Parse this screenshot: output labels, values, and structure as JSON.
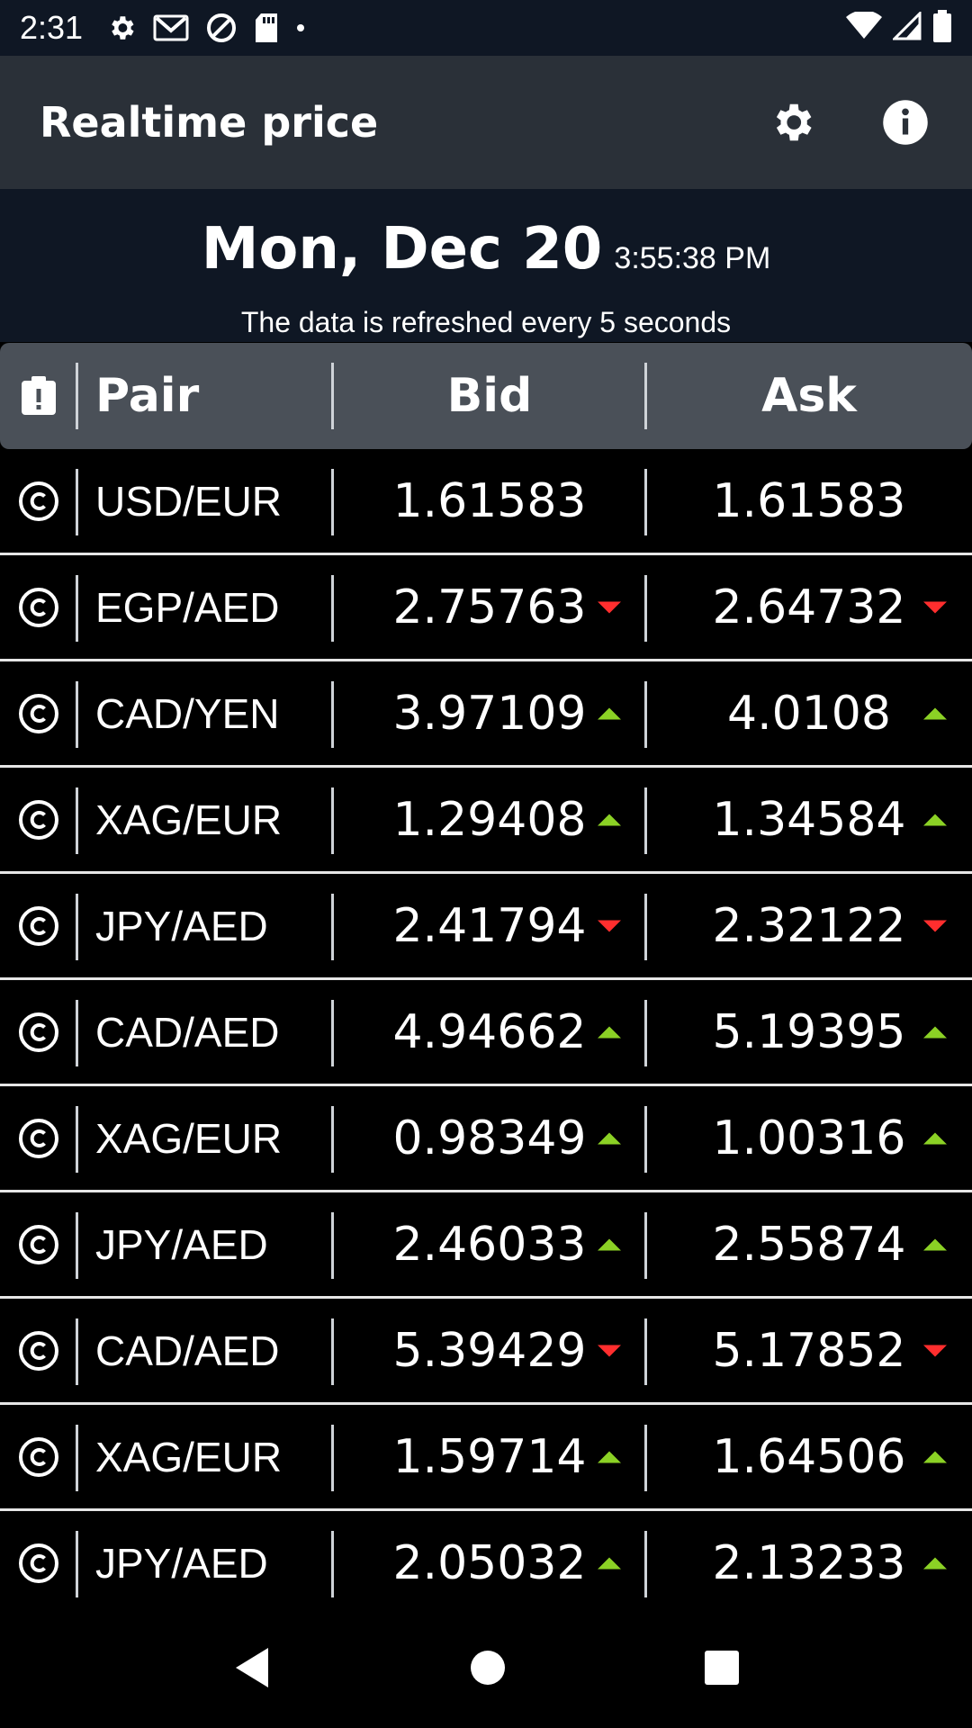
{
  "status_bar": {
    "time": "2:31",
    "icons_left": [
      "settings-icon",
      "gmail-icon",
      "at-sign-icon",
      "sd-card-icon",
      "dot-icon"
    ],
    "icons_right": [
      "wifi-icon",
      "signal-icon",
      "battery-icon"
    ]
  },
  "app_bar": {
    "title": "Realtime price",
    "actions": [
      "settings-gear-icon",
      "info-icon"
    ]
  },
  "header": {
    "date": "Mon, Dec 20",
    "time": "3:55:38 PM",
    "refresh_note": "The data is refreshed every 5 seconds"
  },
  "table": {
    "columns": [
      "Pair",
      "Bid",
      "Ask"
    ],
    "rows": [
      {
        "pair": "USD/EUR",
        "bid": "1.61583",
        "bid_trend": "none",
        "ask": "1.61583",
        "ask_trend": "none"
      },
      {
        "pair": "EGP/AED",
        "bid": "2.75763",
        "bid_trend": "down",
        "ask": "2.64732",
        "ask_trend": "down"
      },
      {
        "pair": "CAD/YEN",
        "bid": "3.97109",
        "bid_trend": "up",
        "ask": "4.0108",
        "ask_trend": "up"
      },
      {
        "pair": "XAG/EUR",
        "bid": "1.29408",
        "bid_trend": "up",
        "ask": "1.34584",
        "ask_trend": "up"
      },
      {
        "pair": "JPY/AED",
        "bid": "2.41794",
        "bid_trend": "down",
        "ask": "2.32122",
        "ask_trend": "down"
      },
      {
        "pair": "CAD/AED",
        "bid": "4.94662",
        "bid_trend": "up",
        "ask": "5.19395",
        "ask_trend": "up"
      },
      {
        "pair": "XAG/EUR",
        "bid": "0.98349",
        "bid_trend": "up",
        "ask": "1.00316",
        "ask_trend": "up"
      },
      {
        "pair": "JPY/AED",
        "bid": "2.46033",
        "bid_trend": "up",
        "ask": "2.55874",
        "ask_trend": "up"
      },
      {
        "pair": "CAD/AED",
        "bid": "5.39429",
        "bid_trend": "down",
        "ask": "5.17852",
        "ask_trend": "down"
      },
      {
        "pair": "XAG/EUR",
        "bid": "1.59714",
        "bid_trend": "up",
        "ask": "1.64506",
        "ask_trend": "up"
      },
      {
        "pair": "JPY/AED",
        "bid": "2.05032",
        "bid_trend": "up",
        "ask": "2.13233",
        "ask_trend": "up"
      }
    ]
  },
  "colors": {
    "up": "#8bd125",
    "down": "#ff2e2e",
    "app_bar": "#2a3038",
    "header_bg": "#0f1724",
    "table_header": "#4a5058"
  },
  "nav_bar": {
    "buttons": [
      "back-icon",
      "home-icon",
      "recents-icon"
    ]
  }
}
